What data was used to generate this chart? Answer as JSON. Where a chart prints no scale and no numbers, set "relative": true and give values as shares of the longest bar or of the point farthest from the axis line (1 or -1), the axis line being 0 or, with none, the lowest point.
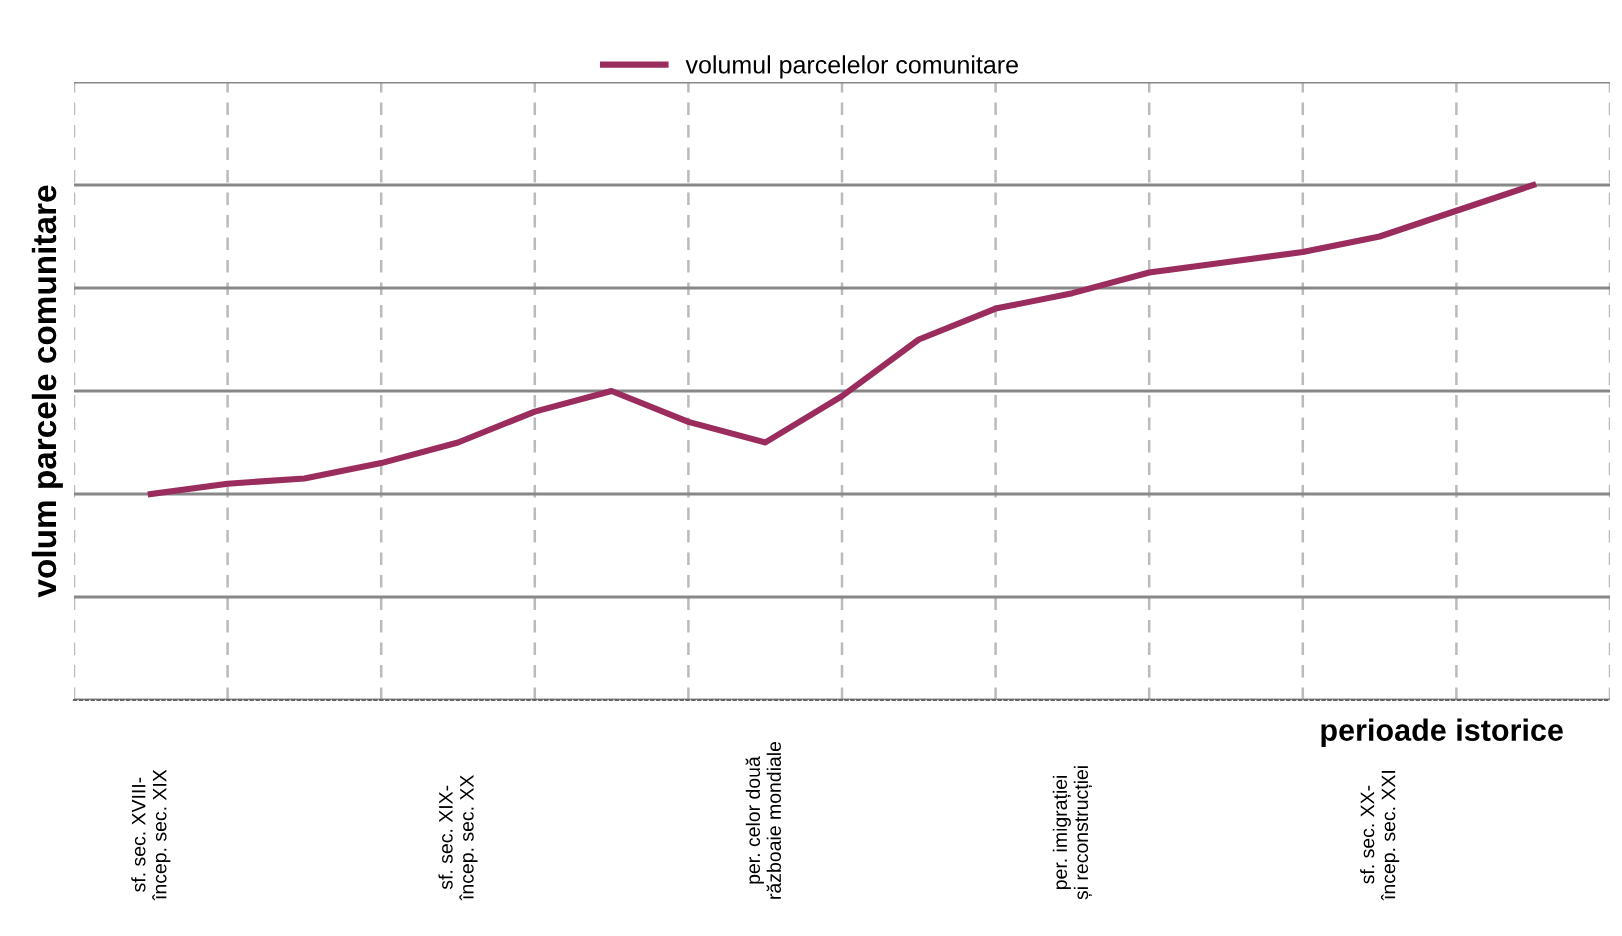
{
  "chart_data": {
    "type": "line",
    "relative": true,
    "xlabel": "perioade istorice",
    "ylabel": "volum parcele comunitare",
    "categories": [
      "sf. sec. XVIII-\nîncep. sec. XIX",
      null,
      null,
      null,
      "sf. sec. XIX-\nîncep. sec. XX",
      null,
      null,
      null,
      "per. celor două\nrăzboaie mondiale",
      null,
      null,
      null,
      "per. imigrației\nși reconstrucției",
      null,
      null,
      null,
      "sf. sec. XX-\nîncep. sec. XXI",
      null,
      null
    ],
    "series": [
      {
        "name": "volumul parcelelor comunitare",
        "color": "#9b2d5e",
        "values": [
          0.4,
          0.42,
          0.43,
          0.46,
          0.5,
          0.56,
          0.6,
          0.54,
          0.5,
          0.59,
          0.7,
          0.76,
          0.79,
          0.83,
          0.85,
          0.87,
          0.9,
          0.95,
          1.0
        ]
      }
    ],
    "grid": true,
    "legend": "top",
    "marker": "none",
    "line_style": "solid"
  }
}
